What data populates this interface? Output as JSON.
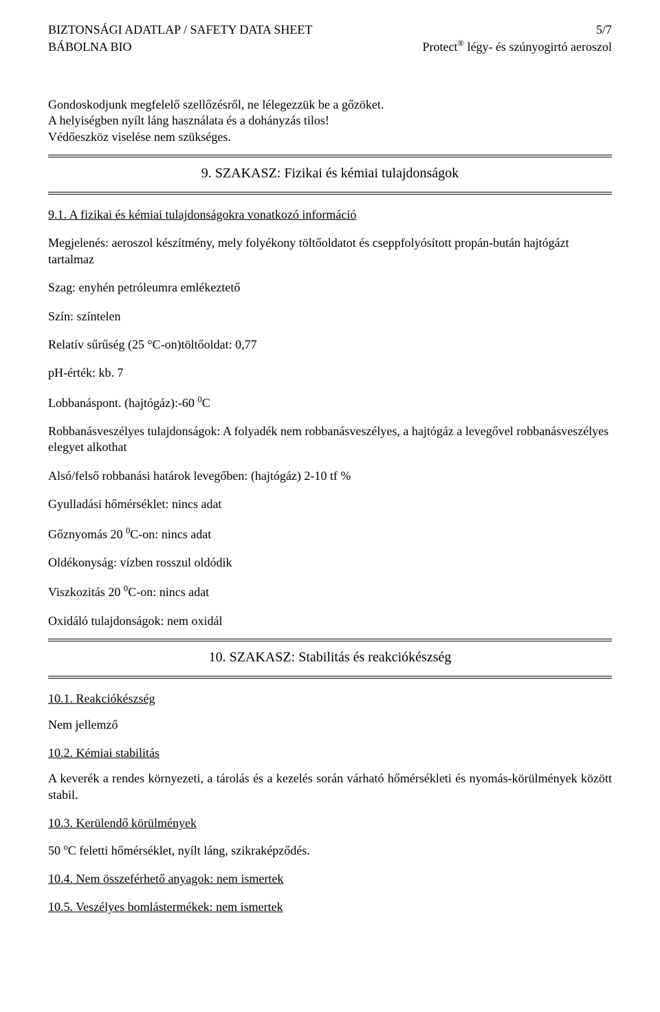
{
  "header": {
    "title_line1_left": "BIZTONSÁGI ADATLAP / SAFETY DATA SHEET",
    "title_line1_right": "5/7",
    "title_line2_left": "BÁBOLNA BIO",
    "title_line2_right_pre": "Protect",
    "title_line2_right_sup": "®",
    "title_line2_right_post": " légy- és szúnyogirtó aeroszol"
  },
  "intro": {
    "p1": "Gondoskodjunk megfelelő szellőzésről, ne lélegezzük be a gőzöket.",
    "p2": "A helyiségben nyílt láng használata és a dohányzás tilos!",
    "p3": "Védőeszköz viselése nem szükséges."
  },
  "section9": {
    "title": "9. SZAKASZ: Fizikai és kémiai tulajdonságok",
    "sub91": "9.1. A fizikai és kémiai tulajdonságokra vonatkozó információ",
    "megjelenes": "Megjelenés: aeroszol készítmény, mely folyékony töltőoldatot és cseppfolyósított propán-bután hajtógázt tartalmaz",
    "szag": "Szag: enyhén petróleumra emlékeztető",
    "szin": "Szín: színtelen",
    "suruseg": "Relatív sűrűség (25 °C-on)töltőoldat: 0,77",
    "ph": "pH-érték: kb. 7",
    "lobbanas_pre": "Lobbanáspont. (hajtógáz):-60 ",
    "lobbanas_sup": "0",
    "lobbanas_post": "C",
    "robbanas": "Robbanásveszélyes tulajdonságok: A folyadék nem robbanásveszélyes, a hajtógáz a levegővel robbanásveszélyes elegyet alkothat",
    "hatarok": "Alsó/felső robbanási határok levegőben: (hajtógáz) 2-10 tf %",
    "gyulladasi": "Gyulladási hőmérséklet: nincs adat",
    "goznyomas_pre": "Gőznyomás 20 ",
    "goznyomas_sup": "0",
    "goznyomas_post": "C-on: nincs adat",
    "oldekonysag": "Oldékonyság: vízben rosszul oldódik",
    "viszk_pre": "Viszkozitás 20 ",
    "viszk_sup": "0",
    "viszk_post": "C-on: nincs adat",
    "oxidalo": "Oxidáló tulajdonságok: nem oxidál"
  },
  "section10": {
    "title": "10. SZAKASZ: Stabilitás és reakciókészség",
    "sub101": "10.1. Reakciókészség",
    "sub101_body": "Nem jellemző",
    "sub102": "10.2. Kémiai stabilitás",
    "sub102_body": "A keverék a rendes környezeti, a tárolás és a kezelés során várható hőmérsékleti és nyomás-körülmények között stabil.",
    "sub103": "10.3. Kerülendő körülmények",
    "sub103_body_pre": "50 ",
    "sub103_body_sup": "o",
    "sub103_body_post": "C feletti hőmérséklet, nyílt láng, szikraképződés.",
    "sub104": "10.4. Nem összeférhető anyagok: nem ismertek",
    "sub105": "10.5. Veszélyes bomlástermékek: nem ismertek"
  }
}
